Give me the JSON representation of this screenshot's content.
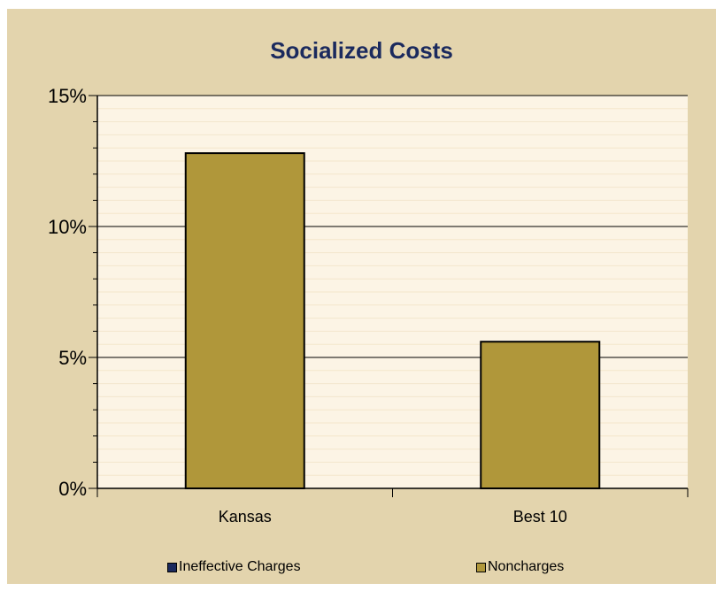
{
  "chart_data": {
    "type": "bar",
    "title": "Socialized Costs",
    "categories": [
      "Kansas",
      "Best 10"
    ],
    "series": [
      {
        "name": "Ineffective Charges",
        "color": "#1b2a5e",
        "values": [
          0,
          0
        ]
      },
      {
        "name": "Noncharges",
        "color": "#b0973a",
        "values": [
          12.8,
          5.6
        ]
      }
    ],
    "yticks": [
      "0%",
      "5%",
      "10%",
      "15%"
    ],
    "ytick_values": [
      0,
      5,
      10,
      15
    ],
    "ylim": [
      0,
      15
    ],
    "xlabel": "",
    "ylabel": "",
    "grid": true,
    "legend_position": "bottom",
    "colors": {
      "background": "#e3d4ad",
      "plot_area": "#fcf4e5",
      "title": "#1b2a5e"
    }
  }
}
